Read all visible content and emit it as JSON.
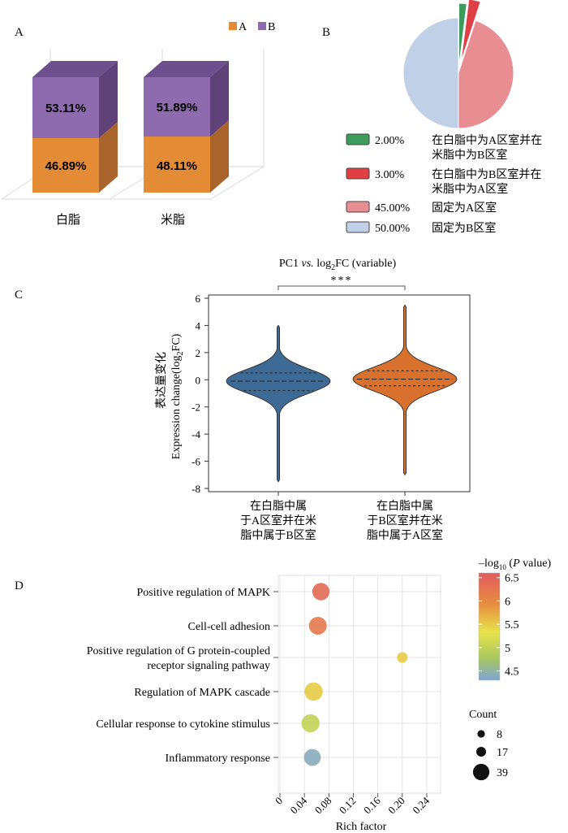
{
  "panels": {
    "a": {
      "label": "A",
      "chart_data": {
        "type": "bar",
        "stacked": true,
        "categories": [
          "白脂",
          "米脂"
        ],
        "series": [
          {
            "name": "A",
            "values": [
              46.89,
              48.11
            ],
            "labels": [
              "46.89%",
              "48.11%"
            ],
            "color": "#E38B35"
          },
          {
            "name": "B",
            "values": [
              53.11,
              51.89
            ],
            "labels": [
              "53.11%",
              "51.89%"
            ],
            "color": "#8E6BAF"
          }
        ],
        "legend": [
          "A",
          "B"
        ]
      }
    },
    "b": {
      "label": "B",
      "chart_data": {
        "type": "pie",
        "slices": [
          {
            "value": 2.0,
            "pct_label": "2.00%",
            "desc": "在白脂中为A区室并在米脂中为B区室",
            "color": "#3E9B5C",
            "exploded": true
          },
          {
            "value": 3.0,
            "pct_label": "3.00%",
            "desc": "在白脂中为B区室并在米脂中为A区室",
            "color": "#E04045",
            "exploded": true
          },
          {
            "value": 45.0,
            "pct_label": "45.00%",
            "desc": "固定为A区室",
            "color": "#E88E93",
            "exploded": false
          },
          {
            "value": 50.0,
            "pct_label": "50.00%",
            "desc": "固定为B区室",
            "color": "#C0D0E6",
            "exploded": false
          }
        ]
      }
    },
    "c": {
      "label": "C",
      "chart_data": {
        "type": "violin",
        "title_prefix": "PC1 ",
        "title_vs": "vs.",
        "title_mid": " log",
        "title_sub": "2",
        "title_suffix": "FC (variable)",
        "significance": "***",
        "ylabel_cn": "表达量变化",
        "ylabel_en": "Expression change(log",
        "ylabel_sub": "2",
        "ylabel_end": "FC)",
        "ylim": [
          -8,
          6
        ],
        "yticks": [
          "6",
          "4",
          "2",
          "0",
          "-2",
          "-4",
          "-6",
          "-8"
        ],
        "groups": [
          {
            "name_lines": [
              "在白脂中属",
              "于A区室并在米",
              "脂中属于B区室"
            ],
            "color": "#3E6A96",
            "min": -7.5,
            "max": 4.0,
            "q1": -0.8,
            "median": -0.1,
            "q3": 0.5
          },
          {
            "name_lines": [
              "在白脂中属",
              "于B区室并在米",
              "脂中属于A区室"
            ],
            "color": "#D9712E",
            "min": -7.0,
            "max": 5.5,
            "q1": -0.45,
            "median": 0.05,
            "q3": 0.65
          }
        ]
      }
    },
    "d": {
      "label": "D",
      "chart_data": {
        "type": "scatter",
        "xlabel": "Rich factor",
        "xlim": [
          0,
          0.26
        ],
        "xticks": [
          "0",
          "0.04",
          "0.08",
          "0.12",
          "0.16",
          "0.20",
          "0.24"
        ],
        "terms": [
          {
            "name_lines": [
              "Positive regulation of MAPK"
            ],
            "rich": 0.067,
            "neglog10p": 6.4,
            "count": 30
          },
          {
            "name_lines": [
              "Cell-cell adhesion"
            ],
            "rich": 0.062,
            "neglog10p": 6.2,
            "count": 32
          },
          {
            "name_lines": [
              "Positive regulation of G protein-coupled",
              "receptor signaling pathway"
            ],
            "rich": 0.2,
            "neglog10p": 5.5,
            "count": 8
          },
          {
            "name_lines": [
              "Regulation of MAPK cascade"
            ],
            "rich": 0.055,
            "neglog10p": 5.5,
            "count": 34
          },
          {
            "name_lines": [
              "Cellular response to cytokine stimulus"
            ],
            "rich": 0.05,
            "neglog10p": 5.0,
            "count": 33
          },
          {
            "name_lines": [
              "Inflammatory response"
            ],
            "rich": 0.053,
            "neglog10p": 4.4,
            "count": 28
          }
        ],
        "color_legend": {
          "title_pre": "–log",
          "title_sub": "10",
          "title_post": " (",
          "title_p": "P",
          "title_end": " value)",
          "ticks": [
            "6.5",
            "6",
            "5.5",
            "5",
            "4.5"
          ],
          "range": [
            4.3,
            6.6
          ]
        },
        "size_legend": {
          "title": "Count",
          "values": [
            8,
            17,
            39
          ],
          "labels": [
            "8",
            "17",
            "39"
          ]
        }
      }
    }
  }
}
